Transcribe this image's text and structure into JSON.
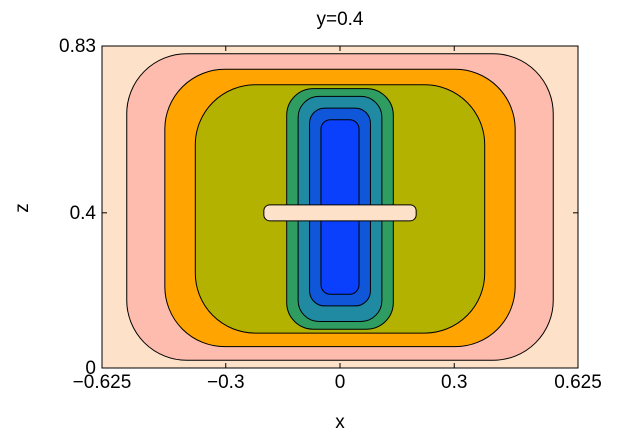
{
  "chart_data": {
    "type": "contour",
    "title": "y=0.4",
    "xlabel": "x",
    "ylabel": "z",
    "xlim": [
      -0.625,
      0.625
    ],
    "ylim": [
      0,
      0.83
    ],
    "xticks": [
      {
        "value": -0.625,
        "label": "−0.625"
      },
      {
        "value": -0.3,
        "label": "−0.3"
      },
      {
        "value": 0,
        "label": "0"
      },
      {
        "value": 0.3,
        "label": "0.3"
      },
      {
        "value": 0.625,
        "label": "0.625"
      }
    ],
    "yticks": [
      {
        "value": 0,
        "label": "0"
      },
      {
        "value": 0.4,
        "label": "0.4"
      },
      {
        "value": 0.83,
        "label": "0.83"
      }
    ],
    "levels": [
      {
        "color": "#fde1c9",
        "rx": [
          -0.625,
          0.625
        ],
        "rz": [
          0,
          0.83
        ]
      },
      {
        "color": "#fdbcae",
        "rx": [
          -0.56,
          0.56
        ],
        "rz": [
          0.02,
          0.81
        ]
      },
      {
        "color": "#ffa400",
        "rx": [
          -0.46,
          0.46
        ],
        "rz": [
          0.055,
          0.77
        ]
      },
      {
        "color": "#b3b200",
        "rx": [
          -0.38,
          0.38
        ],
        "rz": [
          0.09,
          0.73
        ]
      },
      {
        "color": "#2f9d62",
        "rx": [
          -0.14,
          0.14
        ],
        "rz": [
          0.1,
          0.72
        ]
      },
      {
        "color": "#1f8aa1",
        "rx": [
          -0.11,
          0.11
        ],
        "rz": [
          0.12,
          0.7
        ]
      },
      {
        "color": "#0f56d9",
        "rx": [
          -0.08,
          0.08
        ],
        "rz": [
          0.16,
          0.67
        ]
      },
      {
        "color": "#0a3ffb",
        "rx": [
          -0.05,
          0.05
        ],
        "rz": [
          0.19,
          0.64
        ]
      }
    ],
    "lobes": [
      {
        "cx": 0,
        "cz": 0.605,
        "sx": 1,
        "sz": 1
      },
      {
        "cx": 0,
        "cz": 0.255,
        "sx": 1,
        "sz": 1
      }
    ],
    "gap": {
      "cz": 0.4,
      "hw": 0.015
    }
  }
}
